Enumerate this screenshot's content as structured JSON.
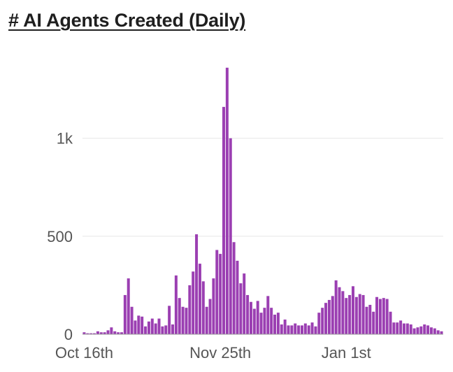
{
  "chart_data": {
    "type": "bar",
    "title": "# AI Agents Created (Daily)",
    "xlabel": "",
    "ylabel": "",
    "ylim": [
      0,
      1420
    ],
    "yticks": [
      0,
      500,
      1000
    ],
    "ytick_labels": [
      "0",
      "500",
      "1k"
    ],
    "xtick_labels": [
      {
        "label": "Oct 16th",
        "index": 0
      },
      {
        "label": "Nov 25th",
        "index": 40
      },
      {
        "label": "Jan 1st",
        "index": 77
      }
    ],
    "color": "#9b3fb2",
    "values": [
      10,
      5,
      5,
      5,
      15,
      10,
      10,
      20,
      35,
      15,
      10,
      10,
      200,
      285,
      140,
      70,
      95,
      90,
      40,
      65,
      80,
      55,
      80,
      40,
      45,
      145,
      50,
      300,
      185,
      140,
      135,
      250,
      320,
      510,
      360,
      270,
      140,
      180,
      285,
      430,
      410,
      1160,
      1360,
      1000,
      470,
      375,
      260,
      310,
      200,
      165,
      130,
      170,
      110,
      135,
      195,
      135,
      100,
      110,
      50,
      75,
      45,
      45,
      55,
      45,
      45,
      55,
      45,
      60,
      40,
      110,
      135,
      160,
      175,
      195,
      275,
      240,
      220,
      185,
      200,
      245,
      190,
      205,
      200,
      140,
      150,
      115,
      190,
      180,
      185,
      180,
      115,
      60,
      60,
      70,
      55,
      55,
      50,
      30,
      35,
      40,
      50,
      45,
      35,
      30,
      20,
      15
    ]
  }
}
